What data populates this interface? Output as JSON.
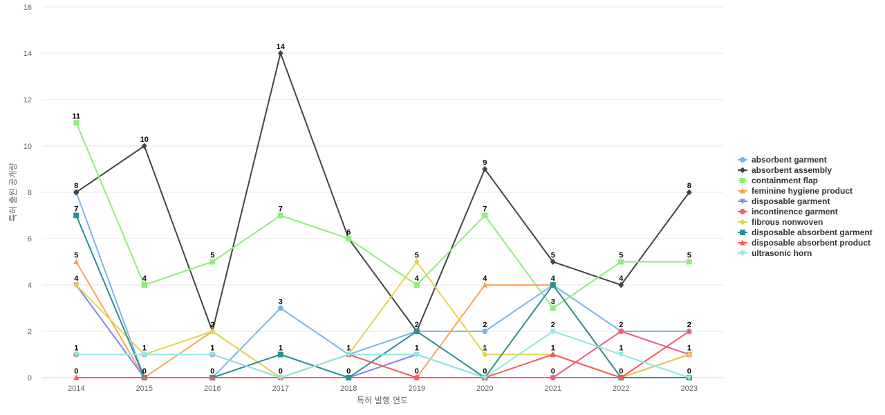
{
  "chart_data": {
    "type": "line",
    "xlabel": "특허 발행 연도",
    "ylabel": "특허 출원 공개량",
    "ylim": [
      0,
      16
    ],
    "yticks": [
      0,
      2,
      4,
      6,
      8,
      10,
      12,
      14,
      16
    ],
    "grid": true,
    "legend_position": "right",
    "categories": [
      "2014",
      "2015",
      "2016",
      "2017",
      "2018",
      "2019",
      "2020",
      "2021",
      "2022",
      "2023"
    ],
    "series": [
      {
        "name": "absorbent garment",
        "color": "#7cb5ec",
        "marker": "circle",
        "values": [
          8,
          0,
          0,
          3,
          1,
          2,
          2,
          4,
          2,
          2
        ]
      },
      {
        "name": "absorbent assembly",
        "color": "#434348",
        "marker": "diamond",
        "values": [
          8,
          10,
          2,
          14,
          6,
          2,
          9,
          5,
          4,
          8
        ]
      },
      {
        "name": "containment flap",
        "color": "#90ed7d",
        "marker": "square",
        "values": [
          11,
          4,
          5,
          7,
          6,
          4,
          7,
          3,
          5,
          5
        ]
      },
      {
        "name": "feminine hygiene product",
        "color": "#f7a35c",
        "marker": "triangle",
        "values": [
          5,
          0,
          2,
          0,
          0,
          0,
          4,
          4,
          0,
          1
        ]
      },
      {
        "name": "disposable garment",
        "color": "#8085e9",
        "marker": "triangle-down",
        "values": [
          4,
          0,
          0,
          0,
          0,
          1,
          0,
          0,
          0,
          1
        ]
      },
      {
        "name": "incontinence garment",
        "color": "#f15c80",
        "marker": "circle",
        "values": [
          1,
          1,
          1,
          0,
          0,
          0,
          0,
          0,
          2,
          1
        ]
      },
      {
        "name": "fibrous nonwoven",
        "color": "#e4d354",
        "marker": "diamond",
        "values": [
          4,
          1,
          2,
          0,
          1,
          5,
          1,
          1,
          0,
          1
        ]
      },
      {
        "name": "disposable absorbent garment",
        "color": "#2b908f",
        "marker": "square",
        "values": [
          7,
          0,
          0,
          1,
          0,
          2,
          0,
          4,
          0,
          0
        ]
      },
      {
        "name": "disposable absorbent product",
        "color": "#f45b5b",
        "marker": "triangle",
        "values": [
          0,
          0,
          0,
          0,
          1,
          0,
          0,
          1,
          0,
          2
        ]
      },
      {
        "name": "ultrasonic horn",
        "color": "#91e8e1",
        "marker": "triangle-down",
        "values": [
          1,
          1,
          1,
          0,
          1,
          1,
          0,
          2,
          1,
          0
        ]
      }
    ],
    "data_labels": [
      {
        "x": "2014",
        "y": 11,
        "text": "11"
      },
      {
        "x": "2014",
        "y": 8,
        "text": "8"
      },
      {
        "x": "2014",
        "y": 7,
        "text": "7"
      },
      {
        "x": "2014",
        "y": 5,
        "text": "5"
      },
      {
        "x": "2014",
        "y": 4,
        "text": "4"
      },
      {
        "x": "2014",
        "y": 1,
        "text": "1"
      },
      {
        "x": "2014",
        "y": 0,
        "text": "0"
      },
      {
        "x": "2015",
        "y": 10,
        "text": "10"
      },
      {
        "x": "2015",
        "y": 4,
        "text": "4"
      },
      {
        "x": "2015",
        "y": 1,
        "text": "1"
      },
      {
        "x": "2015",
        "y": 0,
        "text": "0"
      },
      {
        "x": "2016",
        "y": 5,
        "text": "5"
      },
      {
        "x": "2016",
        "y": 2,
        "text": "2"
      },
      {
        "x": "2016",
        "y": 1,
        "text": "1"
      },
      {
        "x": "2016",
        "y": 0,
        "text": "0"
      },
      {
        "x": "2017",
        "y": 14,
        "text": "14"
      },
      {
        "x": "2017",
        "y": 7,
        "text": "7"
      },
      {
        "x": "2017",
        "y": 3,
        "text": "3"
      },
      {
        "x": "2017",
        "y": 1,
        "text": "1"
      },
      {
        "x": "2017",
        "y": 0,
        "text": "0"
      },
      {
        "x": "2018",
        "y": 6,
        "text": "6"
      },
      {
        "x": "2018",
        "y": 1,
        "text": "1"
      },
      {
        "x": "2018",
        "y": 0,
        "text": "0"
      },
      {
        "x": "2019",
        "y": 5,
        "text": "5"
      },
      {
        "x": "2019",
        "y": 4,
        "text": "4"
      },
      {
        "x": "2019",
        "y": 2,
        "text": "2"
      },
      {
        "x": "2019",
        "y": 1,
        "text": "1"
      },
      {
        "x": "2019",
        "y": 0,
        "text": "0"
      },
      {
        "x": "2020",
        "y": 9,
        "text": "9"
      },
      {
        "x": "2020",
        "y": 7,
        "text": "7"
      },
      {
        "x": "2020",
        "y": 4,
        "text": "4"
      },
      {
        "x": "2020",
        "y": 2,
        "text": "2"
      },
      {
        "x": "2020",
        "y": 1,
        "text": "1"
      },
      {
        "x": "2020",
        "y": 0,
        "text": "0"
      },
      {
        "x": "2021",
        "y": 5,
        "text": "5"
      },
      {
        "x": "2021",
        "y": 4,
        "text": "4"
      },
      {
        "x": "2021",
        "y": 3,
        "text": "3"
      },
      {
        "x": "2021",
        "y": 2,
        "text": "2"
      },
      {
        "x": "2021",
        "y": 1,
        "text": "1"
      },
      {
        "x": "2021",
        "y": 0,
        "text": "0"
      },
      {
        "x": "2022",
        "y": 5,
        "text": "5"
      },
      {
        "x": "2022",
        "y": 4,
        "text": "4"
      },
      {
        "x": "2022",
        "y": 2,
        "text": "2"
      },
      {
        "x": "2022",
        "y": 1,
        "text": "1"
      },
      {
        "x": "2022",
        "y": 0,
        "text": "0"
      },
      {
        "x": "2023",
        "y": 8,
        "text": "8"
      },
      {
        "x": "2023",
        "y": 5,
        "text": "5"
      },
      {
        "x": "2023",
        "y": 2,
        "text": "2"
      },
      {
        "x": "2023",
        "y": 1,
        "text": "1"
      },
      {
        "x": "2023",
        "y": 0,
        "text": "0"
      }
    ]
  }
}
